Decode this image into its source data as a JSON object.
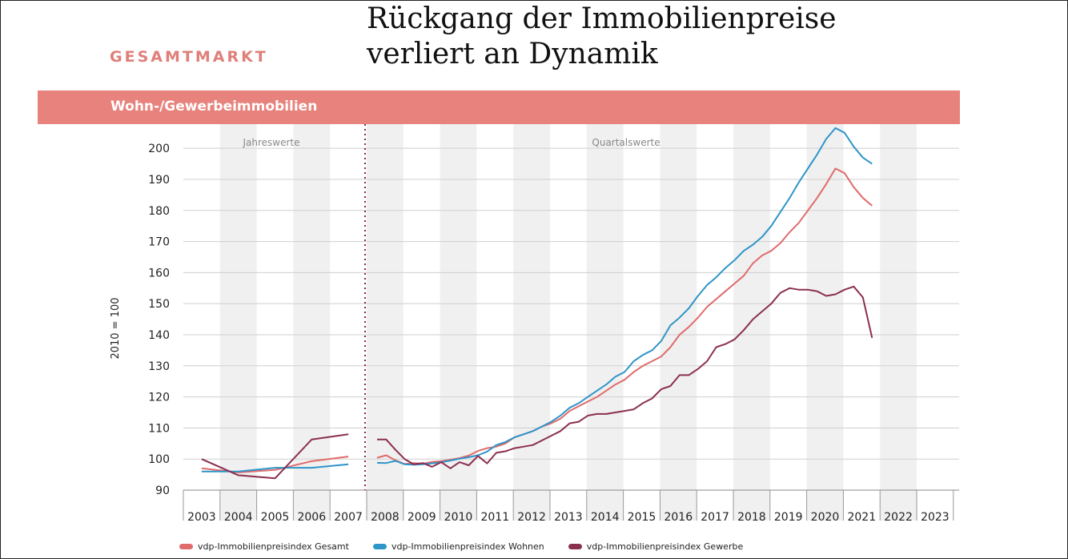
{
  "header": {
    "kicker": "GESAMTMARKT",
    "title_line1": "Rückgang der Immobilienpreise",
    "title_line2": "verliert an Dynamik"
  },
  "banner": {
    "label": "Wohn-/Gewerbeimmobilien"
  },
  "colors": {
    "banner": "#e8827c",
    "gesamt": "#e06b6b",
    "wohnen": "#2e95c9",
    "gewerbe": "#8b2f50",
    "band": "#f0f0f0",
    "divider": "#8a2b3c"
  },
  "chart_data": {
    "type": "line",
    "ylabel": "2010 = 100",
    "ylim": [
      90,
      207
    ],
    "yticks": [
      90,
      100,
      110,
      120,
      130,
      140,
      150,
      160,
      170,
      180,
      190,
      200
    ],
    "section_labels": {
      "annual": "Jahreswerte",
      "quarterly": "Quartalswerte"
    },
    "years": [
      "2003",
      "2004",
      "2005",
      "2006",
      "2007",
      "2008",
      "2009",
      "2010",
      "2011",
      "2012",
      "2013",
      "2014",
      "2015",
      "2016",
      "2017",
      "2018",
      "2019",
      "2020",
      "2021",
      "2022",
      "2023"
    ],
    "grid": true,
    "legend_position": "bottom",
    "series": [
      {
        "name": "vdp-Immobilienpreisindex Gesamt",
        "key": "gesamt",
        "annual": [
          97,
          95.7,
          96.5,
          99.3,
          100.8
        ],
        "quarterly": [
          100.4,
          101.2,
          99.6,
          98.4,
          98.7,
          98.5,
          99.1,
          99.3,
          99.8,
          100.3,
          101.1,
          102.6,
          103.5,
          104.0,
          105.0,
          107.0,
          108.0,
          109.0,
          110.5,
          111.5,
          113.0,
          115.5,
          117.0,
          118.5,
          120.0,
          122.0,
          124.0,
          125.5,
          128.0,
          130.0,
          131.5,
          133.0,
          136.0,
          140.0,
          142.5,
          145.5,
          149.0,
          151.5,
          154.0,
          156.5,
          159.0,
          163.0,
          165.5,
          167.0,
          169.5,
          173.0,
          176.0,
          180.0,
          184.0,
          188.5,
          193.5,
          192.0,
          187.5,
          184.0,
          181.5
        ]
      },
      {
        "name": "vdp-Immobilienpreisindex Wohnen",
        "key": "wohnen",
        "annual": [
          96,
          96,
          97.2,
          97.2,
          98.3
        ],
        "quarterly": [
          98.8,
          98.7,
          99.4,
          98.3,
          98.2,
          98.3,
          98.6,
          99.0,
          99.5,
          100.1,
          100.6,
          101.2,
          102.4,
          104.5,
          105.5,
          107.0,
          108.0,
          109.0,
          110.5,
          112.0,
          114.0,
          116.5,
          118.0,
          120.0,
          122.0,
          124.0,
          126.5,
          128.0,
          131.5,
          133.5,
          135.0,
          138.0,
          143.0,
          145.5,
          148.5,
          152.5,
          156.0,
          158.5,
          161.5,
          164.0,
          167.0,
          169.0,
          171.5,
          175.0,
          179.5,
          184.0,
          189.0,
          193.5,
          198.0,
          203.0,
          206.5,
          205.0,
          200.5,
          197.0,
          195.0
        ]
      },
      {
        "name": "vdp-Immobilienpreisindex Gewerbe",
        "key": "gewerbe",
        "annual": [
          100,
          94.8,
          93.8,
          106.3,
          108.0
        ],
        "quarterly": [
          106.3,
          106.3,
          103.0,
          100.0,
          98.3,
          98.7,
          97.5,
          99.0,
          97.0,
          99.0,
          98.0,
          101.0,
          98.6,
          102.0,
          102.5,
          103.5,
          104.0,
          104.5,
          106.0,
          107.5,
          109.0,
          111.5,
          112.0,
          114.0,
          114.5,
          114.5,
          115.0,
          115.5,
          116.0,
          118.0,
          119.5,
          122.5,
          123.5,
          127.0,
          127.0,
          129.0,
          131.5,
          136.0,
          137.0,
          138.5,
          141.5,
          145.0,
          147.5,
          150.0,
          153.5,
          155.0,
          154.5,
          154.5,
          154.0,
          152.5,
          153.0,
          154.5,
          155.5,
          152.0,
          139.0
        ]
      }
    ]
  }
}
